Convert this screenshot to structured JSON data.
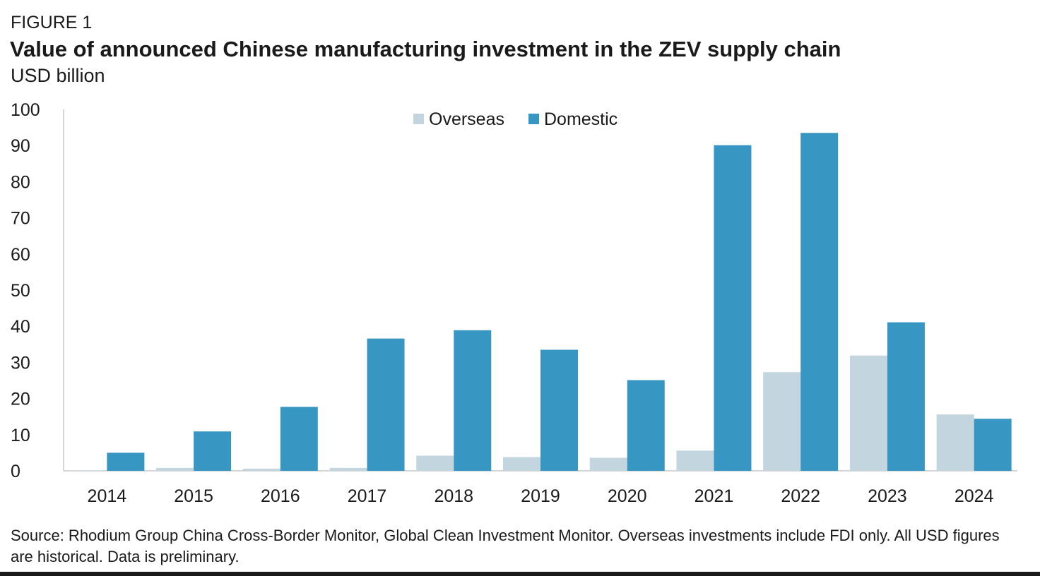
{
  "header": {
    "figure_label": "FIGURE 1",
    "title": "Value of announced Chinese manufacturing investment in the ZEV supply chain",
    "subtitle": "USD billion"
  },
  "footer": {
    "source": "Source: Rhodium Group China Cross-Border Monitor, Global Clean Investment Monitor. Overseas investments include FDI only. All USD figures are historical. Data is preliminary."
  },
  "chart_data": {
    "type": "bar",
    "title": "Value of announced Chinese manufacturing investment in the ZEV supply chain",
    "subtitle": "USD billion",
    "xlabel": "",
    "ylabel": "",
    "ylim": [
      0,
      100
    ],
    "yticks": [
      0,
      10,
      20,
      30,
      40,
      50,
      60,
      70,
      80,
      90,
      100
    ],
    "grid": false,
    "legend_position": "top-center",
    "categories": [
      "2014",
      "2015",
      "2016",
      "2017",
      "2018",
      "2019",
      "2020",
      "2021",
      "2022",
      "2023",
      "2024"
    ],
    "series": [
      {
        "name": "Overseas",
        "color": "#c3d5de",
        "values": [
          0.1,
          0.8,
          0.6,
          0.8,
          4.2,
          3.8,
          3.6,
          5.6,
          27.3,
          31.9,
          15.6
        ]
      },
      {
        "name": "Domestic",
        "color": "#3897c2",
        "values": [
          5.0,
          10.9,
          17.7,
          36.6,
          38.9,
          33.5,
          25.1,
          90.1,
          93.5,
          41.1,
          14.4
        ]
      }
    ]
  }
}
